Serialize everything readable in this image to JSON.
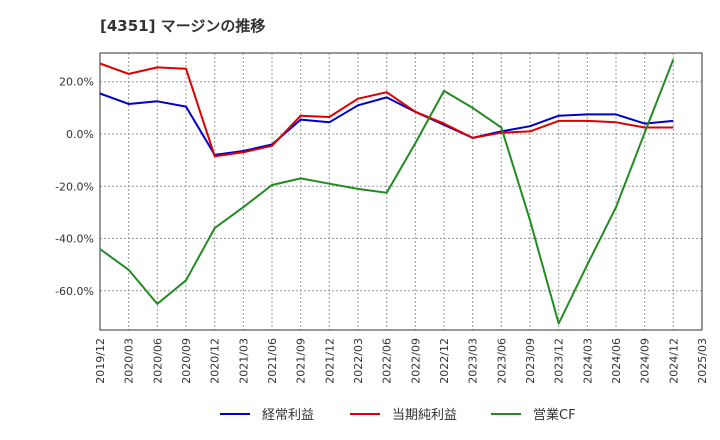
{
  "chart_data": {
    "type": "line",
    "title": "[4351]  マージンの推移",
    "x": [
      "2019/12",
      "2020/03",
      "2020/06",
      "2020/09",
      "2020/12",
      "2021/03",
      "2021/06",
      "2021/09",
      "2021/12",
      "2022/03",
      "2022/06",
      "2022/09",
      "2022/12",
      "2023/03",
      "2023/06",
      "2023/09",
      "2023/12",
      "2024/03",
      "2024/06",
      "2024/09",
      "2024/12",
      "2025/03"
    ],
    "ylim": [
      -75,
      31
    ],
    "yticks": [
      20,
      0,
      -20,
      -40,
      -60
    ],
    "ytick_labels": [
      "20.0%",
      "0.0%",
      "-20.0%",
      "-40.0%",
      "-60.0%"
    ],
    "grid": true,
    "legend_position": "bottom",
    "series": [
      {
        "name": "経常利益",
        "color": "#0000cc",
        "values": [
          15.5,
          11.5,
          12.5,
          10.5,
          -8.0,
          -6.5,
          -4.0,
          5.5,
          4.5,
          11.0,
          14.0,
          8.5,
          3.5,
          -1.5,
          1.0,
          3.0,
          7.0,
          7.5,
          7.5,
          4.0,
          5.0,
          null
        ]
      },
      {
        "name": "当期純利益",
        "color": "#dd0000",
        "values": [
          27.0,
          23.0,
          25.5,
          25.0,
          -8.5,
          -7.0,
          -4.5,
          7.0,
          6.5,
          13.5,
          16.0,
          8.5,
          4.0,
          -1.5,
          0.5,
          1.0,
          5.0,
          5.0,
          4.5,
          2.5,
          2.5,
          null
        ]
      },
      {
        "name": "営業CF",
        "color": "#228b22",
        "values": [
          -44.0,
          -52.0,
          -65.0,
          -56.0,
          -36.0,
          -28.0,
          -19.5,
          -17.0,
          -19.0,
          -21.0,
          -22.5,
          -3.5,
          16.5,
          10.0,
          2.5,
          -33.0,
          -72.5,
          -50.0,
          -28.0,
          0.5,
          28.5,
          null
        ]
      }
    ]
  }
}
